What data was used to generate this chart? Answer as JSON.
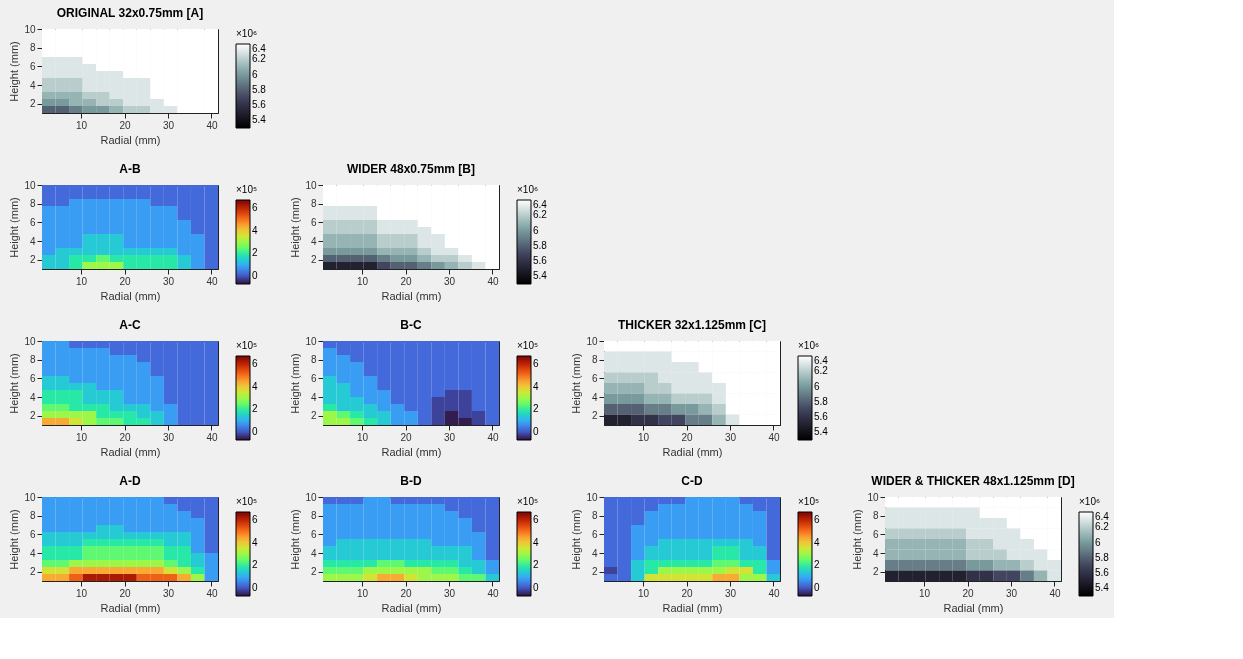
{
  "chart_data": [
    {
      "type": "heatmap",
      "colors": [
        "#000000",
        "#3c3c58",
        "#7fa3a3",
        "#ffffff"
      ],
      "title": "ORIGINAL 32x0.75mm [A]",
      "xlabel": "Radial (mm)",
      "ylabel": "Height (mm)",
      "clabel": "×10⁶",
      "xlim": [
        1,
        41.5
      ],
      "xticks": [
        10,
        20,
        30,
        40
      ],
      "ylim": [
        1,
        10
      ],
      "yticks": [
        2,
        4,
        6,
        8,
        10
      ],
      "clim": [
        5.3,
        6.4
      ],
      "cticks": [
        5.4,
        5.6,
        5.8,
        6,
        6.2,
        6.4
      ],
      "x": [
        2.56,
        5.67,
        8.79,
        11.9,
        15.02,
        18.13,
        21.25,
        24.37,
        27.48,
        30.6,
        33.71,
        36.83,
        39.94
      ],
      "y": [
        9.625,
        8.875,
        8.125,
        7.375,
        6.625,
        5.875,
        5.125,
        4.375,
        3.625,
        2.875,
        2.125,
        1.375
      ],
      "cells": [
        [
          6.4,
          6.4,
          6.4,
          6.4,
          6.4,
          6.4,
          6.4,
          6.4,
          6.4,
          6.4,
          6.4,
          6.4,
          6.4
        ],
        [
          6.4,
          6.4,
          6.4,
          6.4,
          6.4,
          6.4,
          6.4,
          6.4,
          6.4,
          6.4,
          6.4,
          6.4,
          6.4
        ],
        [
          6.4,
          6.4,
          6.4,
          6.4,
          6.4,
          6.4,
          6.4,
          6.4,
          6.4,
          6.4,
          6.4,
          6.4,
          6.4
        ],
        [
          6.4,
          6.4,
          6.4,
          6.4,
          6.4,
          6.4,
          6.4,
          6.4,
          6.4,
          6.4,
          6.4,
          6.4,
          6.4
        ],
        [
          6.3,
          6.3,
          6.3,
          6.4,
          6.4,
          6.4,
          6.4,
          6.4,
          6.4,
          6.4,
          6.4,
          6.4,
          6.4
        ],
        [
          6.3,
          6.3,
          6.3,
          6.3,
          6.4,
          6.4,
          6.4,
          6.4,
          6.4,
          6.4,
          6.4,
          6.4,
          6.4
        ],
        [
          6.3,
          6.3,
          6.3,
          6.3,
          6.3,
          6.3,
          6.4,
          6.4,
          6.4,
          6.4,
          6.4,
          6.4,
          6.4
        ],
        [
          6.2,
          6.2,
          6.2,
          6.3,
          6.3,
          6.3,
          6.3,
          6.3,
          6.4,
          6.4,
          6.4,
          6.4,
          6.4
        ],
        [
          6.2,
          6.2,
          6.2,
          6.3,
          6.3,
          6.3,
          6.3,
          6.3,
          6.4,
          6.4,
          6.4,
          6.4,
          6.4
        ],
        [
          6.1,
          6.1,
          6.1,
          6.2,
          6.2,
          6.3,
          6.3,
          6.3,
          6.4,
          6.4,
          6.4,
          6.4,
          6.4
        ],
        [
          6.0,
          6.0,
          6.1,
          6.1,
          6.2,
          6.2,
          6.3,
          6.3,
          6.3,
          6.4,
          6.4,
          6.4,
          6.4
        ],
        [
          5.8,
          5.8,
          5.9,
          6.0,
          6.0,
          6.1,
          6.2,
          6.2,
          6.3,
          6.3,
          6.4,
          6.4,
          6.4
        ]
      ]
    },
    {
      "type": "heatmap",
      "colors": [
        "#30123b",
        "#4662d7",
        "#36aaf9",
        "#1ae4b6",
        "#72fe5e",
        "#c8ef34",
        "#faba39",
        "#f66b19",
        "#ca2a04",
        "#7a0403"
      ],
      "title": "A-B",
      "xlabel": "Radial (mm)",
      "ylabel": "Height (mm)",
      "clabel": "×10⁵",
      "xlim": [
        1,
        41.5
      ],
      "xticks": [
        10,
        20,
        30,
        40
      ],
      "ylim": [
        1,
        10
      ],
      "yticks": [
        2,
        4,
        6,
        8,
        10
      ],
      "clim": [
        -0.7,
        6.7
      ],
      "cticks": [
        0,
        2,
        4,
        6
      ],
      "x": [
        2.56,
        5.67,
        8.79,
        11.9,
        15.02,
        18.13,
        21.25,
        24.37,
        27.48,
        30.6,
        33.71,
        36.83,
        39.94
      ],
      "y": [
        9.625,
        8.875,
        8.125,
        7.375,
        6.625,
        5.875,
        5.125,
        4.375,
        3.625,
        2.875,
        2.125,
        1.375
      ],
      "cells": [
        [
          0.2,
          0.2,
          0.2,
          0.2,
          0.2,
          0.2,
          0.2,
          0.2,
          0.2,
          0.2,
          0.2,
          0.2,
          0.2
        ],
        [
          0.2,
          0.2,
          0.2,
          0.2,
          0.2,
          0.2,
          0.2,
          0.2,
          0.2,
          0.2,
          0.2,
          0.2,
          0.2
        ],
        [
          0.2,
          0.2,
          0.8,
          0.8,
          0.8,
          0.8,
          0.8,
          0.8,
          0.2,
          0.2,
          0.2,
          0.2,
          0.2
        ],
        [
          0.8,
          0.8,
          0.8,
          0.8,
          0.8,
          0.8,
          0.8,
          0.8,
          0.8,
          0.8,
          0.2,
          0.2,
          0.2
        ],
        [
          0.8,
          0.8,
          0.8,
          0.8,
          0.8,
          0.8,
          0.8,
          0.8,
          0.8,
          0.8,
          0.2,
          0.2,
          0.2
        ],
        [
          0.8,
          0.8,
          0.8,
          0.8,
          0.8,
          0.8,
          0.8,
          0.8,
          0.8,
          0.8,
          0.8,
          0.2,
          0.2
        ],
        [
          0.8,
          0.8,
          0.8,
          0.8,
          0.8,
          0.8,
          0.8,
          0.8,
          0.8,
          0.8,
          0.8,
          0.2,
          0.2
        ],
        [
          0.8,
          0.8,
          0.8,
          1.4,
          1.4,
          1.4,
          0.8,
          0.8,
          0.8,
          0.8,
          0.8,
          0.8,
          0.2
        ],
        [
          0.8,
          0.8,
          0.8,
          1.4,
          1.4,
          1.4,
          0.8,
          0.8,
          0.8,
          0.8,
          0.8,
          0.8,
          0.2
        ],
        [
          0.8,
          1.4,
          1.4,
          1.4,
          1.4,
          1.4,
          1.4,
          1.4,
          1.4,
          1.4,
          0.8,
          0.8,
          0.2
        ],
        [
          1.4,
          1.4,
          1.9,
          1.9,
          2.4,
          1.9,
          1.9,
          1.9,
          1.9,
          1.9,
          1.4,
          0.8,
          0.2
        ],
        [
          1.4,
          1.4,
          1.9,
          3,
          3,
          3,
          1.9,
          1.9,
          1.9,
          1.9,
          1.4,
          0.8,
          0.2
        ]
      ]
    },
    {
      "type": "heatmap",
      "colors": [
        "#000000",
        "#3c3c58",
        "#7fa3a3",
        "#ffffff"
      ],
      "title": "WIDER 48x0.75mm [B]",
      "xlabel": "Radial (mm)",
      "ylabel": "Height (mm)",
      "clabel": "×10⁶",
      "xlim": [
        1,
        41.5
      ],
      "xticks": [
        10,
        20,
        30,
        40
      ],
      "ylim": [
        1,
        10
      ],
      "yticks": [
        2,
        4,
        6,
        8,
        10
      ],
      "clim": [
        5.3,
        6.4
      ],
      "cticks": [
        5.4,
        5.6,
        5.8,
        6,
        6.2,
        6.4
      ],
      "x": [
        2.56,
        5.67,
        8.79,
        11.9,
        15.02,
        18.13,
        21.25,
        24.37,
        27.48,
        30.6,
        33.71,
        36.83,
        39.94
      ],
      "y": [
        9.625,
        8.875,
        8.125,
        7.375,
        6.625,
        5.875,
        5.125,
        4.375,
        3.625,
        2.875,
        2.125,
        1.375
      ],
      "cells": [
        [
          6.4,
          6.4,
          6.4,
          6.4,
          6.4,
          6.4,
          6.4,
          6.4,
          6.4,
          6.4,
          6.4,
          6.4,
          6.4
        ],
        [
          6.4,
          6.4,
          6.4,
          6.4,
          6.4,
          6.4,
          6.4,
          6.4,
          6.4,
          6.4,
          6.4,
          6.4,
          6.4
        ],
        [
          6.4,
          6.4,
          6.4,
          6.4,
          6.4,
          6.4,
          6.4,
          6.4,
          6.4,
          6.4,
          6.4,
          6.4,
          6.4
        ],
        [
          6.3,
          6.3,
          6.3,
          6.3,
          6.4,
          6.4,
          6.4,
          6.4,
          6.4,
          6.4,
          6.4,
          6.4,
          6.4
        ],
        [
          6.3,
          6.3,
          6.3,
          6.3,
          6.4,
          6.4,
          6.4,
          6.4,
          6.4,
          6.4,
          6.4,
          6.4,
          6.4
        ],
        [
          6.2,
          6.2,
          6.2,
          6.2,
          6.3,
          6.3,
          6.3,
          6.4,
          6.4,
          6.4,
          6.4,
          6.4,
          6.4
        ],
        [
          6.2,
          6.2,
          6.2,
          6.2,
          6.3,
          6.3,
          6.3,
          6.3,
          6.4,
          6.4,
          6.4,
          6.4,
          6.4
        ],
        [
          6.1,
          6.1,
          6.1,
          6.1,
          6.2,
          6.2,
          6.2,
          6.3,
          6.3,
          6.4,
          6.4,
          6.4,
          6.4
        ],
        [
          6.1,
          6.1,
          6.1,
          6.1,
          6.2,
          6.2,
          6.2,
          6.3,
          6.3,
          6.4,
          6.4,
          6.4,
          6.4
        ],
        [
          6.0,
          6.0,
          6.0,
          6.0,
          6.1,
          6.1,
          6.1,
          6.2,
          6.3,
          6.3,
          6.4,
          6.4,
          6.4
        ],
        [
          5.8,
          5.8,
          5.8,
          5.8,
          5.9,
          6.0,
          6.0,
          6.1,
          6.2,
          6.2,
          6.3,
          6.4,
          6.4
        ],
        [
          5.5,
          5.5,
          5.5,
          5.5,
          5.7,
          5.8,
          5.8,
          5.9,
          6.0,
          6.1,
          6.2,
          6.3,
          6.4
        ]
      ]
    },
    {
      "type": "heatmap",
      "colors": [
        "#30123b",
        "#4662d7",
        "#36aaf9",
        "#1ae4b6",
        "#72fe5e",
        "#c8ef34",
        "#faba39",
        "#f66b19",
        "#ca2a04",
        "#7a0403"
      ],
      "title": "A-C",
      "xlabel": "Radial (mm)",
      "ylabel": "Height (mm)",
      "clabel": "×10⁵",
      "xlim": [
        1,
        41.5
      ],
      "xticks": [
        10,
        20,
        30,
        40
      ],
      "ylim": [
        1,
        10
      ],
      "yticks": [
        2,
        4,
        6,
        8,
        10
      ],
      "clim": [
        -0.7,
        6.7
      ],
      "cticks": [
        0,
        2,
        4,
        6
      ],
      "x": [
        2.56,
        5.67,
        8.79,
        11.9,
        15.02,
        18.13,
        21.25,
        24.37,
        27.48,
        30.6,
        33.71,
        36.83,
        39.94
      ],
      "y": [
        9.625,
        8.875,
        8.125,
        7.375,
        6.625,
        5.875,
        5.125,
        4.375,
        3.625,
        2.875,
        2.125,
        1.375
      ],
      "cells": [
        [
          0.8,
          0.8,
          0.2,
          0.2,
          0.2,
          0.2,
          0.2,
          0.2,
          0.2,
          0.2,
          0.2,
          0.2,
          0.2
        ],
        [
          0.8,
          0.8,
          0.8,
          0.8,
          0.8,
          0.2,
          0.2,
          0.2,
          0.2,
          0.2,
          0.2,
          0.2,
          0.2
        ],
        [
          0.8,
          0.8,
          0.8,
          0.8,
          0.8,
          0.8,
          0.8,
          0.2,
          0.2,
          0.2,
          0.2,
          0.2,
          0.2
        ],
        [
          0.8,
          0.8,
          0.8,
          0.8,
          0.8,
          0.8,
          0.8,
          0.8,
          0.2,
          0.2,
          0.2,
          0.2,
          0.2
        ],
        [
          0.8,
          0.8,
          0.8,
          0.8,
          0.8,
          0.8,
          0.8,
          0.8,
          0.2,
          0.2,
          0.2,
          0.2,
          0.2
        ],
        [
          1.4,
          1.4,
          0.8,
          0.8,
          0.8,
          0.8,
          0.8,
          0.8,
          0.8,
          0.2,
          0.2,
          0.2,
          0.2
        ],
        [
          1.4,
          1.4,
          1.4,
          1.4,
          0.8,
          0.8,
          0.8,
          0.8,
          0.8,
          0.2,
          0.2,
          0.2,
          0.2
        ],
        [
          1.9,
          1.9,
          1.9,
          1.4,
          1.4,
          1.4,
          0.8,
          0.8,
          0.8,
          0.2,
          0.2,
          0.2,
          0.2
        ],
        [
          1.9,
          1.9,
          1.9,
          1.4,
          1.4,
          1.4,
          0.8,
          0.8,
          0.8,
          0.2,
          0.2,
          0.2,
          0.2
        ],
        [
          2.4,
          2.4,
          1.9,
          1.9,
          1.9,
          1.4,
          1.4,
          1.4,
          0.8,
          0.8,
          0.2,
          0.2,
          0.2
        ],
        [
          3,
          3,
          3,
          3,
          1.9,
          1.9,
          1.9,
          1.4,
          1.4,
          0.8,
          0.2,
          0.2,
          0.2
        ],
        [
          4.4,
          4.4,
          3.6,
          3,
          2.4,
          2.4,
          1.9,
          1.9,
          1.4,
          0.8,
          0.2,
          0.2,
          0.2
        ]
      ]
    },
    {
      "type": "heatmap",
      "colors": [
        "#30123b",
        "#4662d7",
        "#36aaf9",
        "#1ae4b6",
        "#72fe5e",
        "#c8ef34",
        "#faba39",
        "#f66b19",
        "#ca2a04",
        "#7a0403"
      ],
      "title": "B-C",
      "xlabel": "Radial (mm)",
      "ylabel": "Height (mm)",
      "clabel": "×10⁵",
      "xlim": [
        1,
        41.5
      ],
      "xticks": [
        10,
        20,
        30,
        40
      ],
      "ylim": [
        1,
        10
      ],
      "yticks": [
        2,
        4,
        6,
        8,
        10
      ],
      "clim": [
        -0.7,
        6.7
      ],
      "cticks": [
        0,
        2,
        4,
        6
      ],
      "x": [
        2.56,
        5.67,
        8.79,
        11.9,
        15.02,
        18.13,
        21.25,
        24.37,
        27.48,
        30.6,
        33.71,
        36.83,
        39.94
      ],
      "y": [
        9.625,
        8.875,
        8.125,
        7.375,
        6.625,
        5.875,
        5.125,
        4.375,
        3.625,
        2.875,
        2.125,
        1.375
      ],
      "cells": [
        [
          0.2,
          0.2,
          0.2,
          0.2,
          0.2,
          0.2,
          0.2,
          0.2,
          0.2,
          0.2,
          0.2,
          0.2,
          0.2
        ],
        [
          0.8,
          0.2,
          0.2,
          0.2,
          0.2,
          0.2,
          0.2,
          0.2,
          0.2,
          0.2,
          0.2,
          0.2,
          0.2
        ],
        [
          0.8,
          0.8,
          0.2,
          0.2,
          0.2,
          0.2,
          0.2,
          0.2,
          0.2,
          0.2,
          0.2,
          0.2,
          0.2
        ],
        [
          0.8,
          0.8,
          0.8,
          0.2,
          0.2,
          0.2,
          0.2,
          0.2,
          0.2,
          0.2,
          0.2,
          0.2,
          0.2
        ],
        [
          0.8,
          0.8,
          0.8,
          0.2,
          0.2,
          0.2,
          0.2,
          0.2,
          0.2,
          0.2,
          0.2,
          0.2,
          0.2
        ],
        [
          1.4,
          0.8,
          0.8,
          0.8,
          0.2,
          0.2,
          0.2,
          0.2,
          0.2,
          0.2,
          0.2,
          0.2,
          0.2
        ],
        [
          1.4,
          1.4,
          0.8,
          0.8,
          0.2,
          0.2,
          0.2,
          0.2,
          0.2,
          0.2,
          0.2,
          0.2,
          0.2
        ],
        [
          1.4,
          1.4,
          0.8,
          0.8,
          0.8,
          0.2,
          0.2,
          0.2,
          0.2,
          -0.2,
          -0.2,
          0.2,
          0.2
        ],
        [
          1.4,
          1.4,
          1.4,
          0.8,
          0.8,
          0.2,
          0.2,
          0.2,
          -0.2,
          -0.2,
          -0.2,
          0.2,
          0.2
        ],
        [
          1.9,
          1.4,
          1.4,
          1.4,
          0.8,
          0.8,
          0.2,
          0.2,
          -0.2,
          -0.2,
          -0.2,
          0.2,
          0.2
        ],
        [
          3,
          2.4,
          1.9,
          1.4,
          1.4,
          0.8,
          0.8,
          0.2,
          -0.2,
          -0.6,
          -0.2,
          -0.2,
          0.2
        ],
        [
          3,
          3,
          2.4,
          1.9,
          1.4,
          0.8,
          0.8,
          0.2,
          -0.2,
          -0.6,
          -0.6,
          -0.2,
          0.2
        ]
      ]
    },
    {
      "type": "heatmap",
      "colors": [
        "#000000",
        "#3c3c58",
        "#7fa3a3",
        "#ffffff"
      ],
      "title": "THICKER 32x1.125mm [C]",
      "xlabel": "Radial (mm)",
      "ylabel": "Height (mm)",
      "clabel": "×10⁶",
      "xlim": [
        1,
        41.5
      ],
      "xticks": [
        10,
        20,
        30,
        40
      ],
      "ylim": [
        1,
        10
      ],
      "yticks": [
        2,
        4,
        6,
        8,
        10
      ],
      "clim": [
        5.3,
        6.4
      ],
      "cticks": [
        5.4,
        5.6,
        5.8,
        6,
        6.2,
        6.4
      ],
      "x": [
        2.56,
        5.67,
        8.79,
        11.9,
        15.02,
        18.13,
        21.25,
        24.37,
        27.48,
        30.6,
        33.71,
        36.83,
        39.94
      ],
      "y": [
        9.4375,
        8.3125,
        7.1875,
        6.0625,
        4.9375,
        3.8125,
        2.6875,
        1.5625
      ],
      "cells": [
        [
          6.4,
          6.4,
          6.4,
          6.4,
          6.4,
          6.4,
          6.4,
          6.4,
          6.4,
          6.4,
          6.4,
          6.4,
          6.4
        ],
        [
          6.3,
          6.3,
          6.3,
          6.3,
          6.3,
          6.4,
          6.4,
          6.4,
          6.4,
          6.4,
          6.4,
          6.4,
          6.4
        ],
        [
          6.3,
          6.3,
          6.3,
          6.3,
          6.3,
          6.3,
          6.3,
          6.4,
          6.4,
          6.4,
          6.4,
          6.4,
          6.4
        ],
        [
          6.2,
          6.2,
          6.2,
          6.2,
          6.3,
          6.3,
          6.3,
          6.3,
          6.4,
          6.4,
          6.4,
          6.4,
          6.4
        ],
        [
          6.1,
          6.1,
          6.1,
          6.2,
          6.2,
          6.3,
          6.3,
          6.3,
          6.3,
          6.4,
          6.4,
          6.4,
          6.4
        ],
        [
          6.0,
          6.0,
          6.0,
          6.1,
          6.1,
          6.2,
          6.2,
          6.2,
          6.3,
          6.4,
          6.4,
          6.4,
          6.4
        ],
        [
          5.8,
          5.8,
          5.8,
          5.9,
          5.9,
          6.0,
          6.0,
          6.1,
          6.2,
          6.4,
          6.4,
          6.4,
          6.4
        ],
        [
          5.5,
          5.5,
          5.6,
          5.6,
          5.7,
          5.7,
          5.9,
          5.9,
          6.1,
          6.3,
          6.4,
          6.4,
          6.4
        ]
      ]
    },
    {
      "type": "heatmap",
      "colors": [
        "#30123b",
        "#4662d7",
        "#36aaf9",
        "#1ae4b6",
        "#72fe5e",
        "#c8ef34",
        "#faba39",
        "#f66b19",
        "#ca2a04",
        "#7a0403"
      ],
      "title": "A-D",
      "xlabel": "Radial (mm)",
      "ylabel": "Height (mm)",
      "clabel": "×10⁵",
      "xlim": [
        1,
        41.5
      ],
      "xticks": [
        10,
        20,
        30,
        40
      ],
      "ylim": [
        1,
        10
      ],
      "yticks": [
        2,
        4,
        6,
        8,
        10
      ],
      "clim": [
        -0.7,
        6.7
      ],
      "cticks": [
        0,
        2,
        4,
        6
      ],
      "x": [
        2.56,
        5.67,
        8.79,
        11.9,
        15.02,
        18.13,
        21.25,
        24.37,
        27.48,
        30.6,
        33.71,
        36.83,
        39.94
      ],
      "y": [
        9.625,
        8.875,
        8.125,
        7.375,
        6.625,
        5.875,
        5.125,
        4.375,
        3.625,
        2.875,
        2.125,
        1.375
      ],
      "cells": [
        [
          0.8,
          0.8,
          0.8,
          0.8,
          0.8,
          0.8,
          0.8,
          0.8,
          0.8,
          0.2,
          0.2,
          0.2,
          0.2
        ],
        [
          0.8,
          0.8,
          0.8,
          0.8,
          0.8,
          0.8,
          0.8,
          0.8,
          0.8,
          0.8,
          0.2,
          0.2,
          0.2
        ],
        [
          0.8,
          0.8,
          0.8,
          0.8,
          0.8,
          0.8,
          0.8,
          0.8,
          0.8,
          0.8,
          0.8,
          0.2,
          0.2
        ],
        [
          0.8,
          0.8,
          0.8,
          0.8,
          0.8,
          0.8,
          0.8,
          0.8,
          0.8,
          0.8,
          0.8,
          0.8,
          0.2
        ],
        [
          0.8,
          0.8,
          0.8,
          0.8,
          1.4,
          1.4,
          0.8,
          0.8,
          0.8,
          0.8,
          0.8,
          0.8,
          0.2
        ],
        [
          1.4,
          1.4,
          1.4,
          1.4,
          1.4,
          1.4,
          1.4,
          1.4,
          1.4,
          1.4,
          1.4,
          0.8,
          0.2
        ],
        [
          1.4,
          1.4,
          1.4,
          1.9,
          1.9,
          1.9,
          1.9,
          1.9,
          1.9,
          1.4,
          1.4,
          0.8,
          0.2
        ],
        [
          1.9,
          1.9,
          1.9,
          2.4,
          2.4,
          2.4,
          2.4,
          2.4,
          2.4,
          1.9,
          1.9,
          0.8,
          0.2
        ],
        [
          1.9,
          1.9,
          1.9,
          2.4,
          2.4,
          2.4,
          2.4,
          2.4,
          2.4,
          1.9,
          1.9,
          1.4,
          0.8
        ],
        [
          2.4,
          2.4,
          3,
          3,
          3,
          3,
          3,
          3,
          3,
          2.4,
          1.9,
          1.4,
          0.8
        ],
        [
          3.6,
          3.6,
          4.4,
          4.4,
          4.4,
          4.4,
          4.4,
          4.4,
          4.4,
          3.6,
          3,
          1.9,
          0.8
        ],
        [
          4.4,
          4.4,
          5.2,
          6.2,
          6.2,
          6.2,
          6.2,
          5.2,
          5.2,
          5.2,
          4.4,
          3,
          0.8
        ]
      ]
    },
    {
      "type": "heatmap",
      "colors": [
        "#30123b",
        "#4662d7",
        "#36aaf9",
        "#1ae4b6",
        "#72fe5e",
        "#c8ef34",
        "#faba39",
        "#f66b19",
        "#ca2a04",
        "#7a0403"
      ],
      "title": "B-D",
      "xlabel": "Radial (mm)",
      "ylabel": "Height (mm)",
      "clabel": "×10⁵",
      "xlim": [
        1,
        41.5
      ],
      "xticks": [
        10,
        20,
        30,
        40
      ],
      "ylim": [
        1,
        10
      ],
      "yticks": [
        2,
        4,
        6,
        8,
        10
      ],
      "clim": [
        -0.7,
        6.7
      ],
      "cticks": [
        0,
        2,
        4,
        6
      ],
      "x": [
        2.56,
        5.67,
        8.79,
        11.9,
        15.02,
        18.13,
        21.25,
        24.37,
        27.48,
        30.6,
        33.71,
        36.83,
        39.94
      ],
      "y": [
        9.625,
        8.875,
        8.125,
        7.375,
        6.625,
        5.875,
        5.125,
        4.375,
        3.625,
        2.875,
        2.125,
        1.375
      ],
      "cells": [
        [
          0.2,
          0.2,
          0.2,
          0.8,
          0.8,
          0.2,
          0.2,
          0.2,
          0.2,
          0.2,
          0.2,
          0.2,
          0.2
        ],
        [
          0.8,
          0.8,
          0.8,
          0.8,
          0.8,
          0.8,
          0.8,
          0.8,
          0.8,
          0.2,
          0.2,
          0.2,
          0.2
        ],
        [
          0.8,
          0.8,
          0.8,
          0.8,
          0.8,
          0.8,
          0.8,
          0.8,
          0.8,
          0.8,
          0.2,
          0.2,
          0.2
        ],
        [
          0.8,
          0.8,
          0.8,
          0.8,
          0.8,
          0.8,
          0.8,
          0.8,
          0.8,
          0.8,
          0.8,
          0.2,
          0.2
        ],
        [
          0.8,
          0.8,
          0.8,
          0.8,
          0.8,
          0.8,
          0.8,
          0.8,
          0.8,
          0.8,
          0.8,
          0.2,
          0.2
        ],
        [
          0.8,
          0.8,
          0.8,
          0.8,
          0.8,
          0.8,
          0.8,
          0.8,
          0.8,
          0.8,
          0.8,
          0.8,
          0.2
        ],
        [
          0.8,
          1.4,
          1.4,
          1.4,
          1.4,
          1.4,
          1.4,
          1.4,
          0.8,
          0.8,
          0.8,
          0.8,
          0.2
        ],
        [
          1.4,
          1.4,
          1.4,
          1.4,
          1.4,
          1.4,
          1.4,
          1.4,
          1.4,
          1.4,
          1.4,
          0.8,
          0.2
        ],
        [
          1.4,
          1.4,
          1.4,
          1.4,
          1.4,
          1.4,
          1.4,
          1.4,
          1.4,
          1.4,
          1.4,
          0.8,
          0.2
        ],
        [
          1.9,
          1.9,
          1.9,
          1.9,
          2.4,
          2.4,
          1.9,
          1.9,
          1.9,
          1.9,
          1.4,
          1.4,
          0.8
        ],
        [
          2.4,
          2.4,
          2.4,
          3,
          3,
          3,
          3,
          3,
          2.4,
          2.4,
          1.9,
          1.4,
          0.8
        ],
        [
          3,
          3,
          3,
          3.6,
          4.4,
          4.4,
          3.6,
          3,
          3,
          3,
          2.4,
          2.4,
          1.4
        ]
      ]
    },
    {
      "type": "heatmap",
      "colors": [
        "#30123b",
        "#4662d7",
        "#36aaf9",
        "#1ae4b6",
        "#72fe5e",
        "#c8ef34",
        "#faba39",
        "#f66b19",
        "#ca2a04",
        "#7a0403"
      ],
      "title": "C-D",
      "xlabel": "Radial (mm)",
      "ylabel": "Height (mm)",
      "clabel": "×10⁵",
      "xlim": [
        1,
        41.5
      ],
      "xticks": [
        10,
        20,
        30,
        40
      ],
      "ylim": [
        1,
        10
      ],
      "yticks": [
        2,
        4,
        6,
        8,
        10
      ],
      "clim": [
        -0.7,
        6.7
      ],
      "cticks": [
        0,
        2,
        4,
        6
      ],
      "x": [
        2.56,
        5.67,
        8.79,
        11.9,
        15.02,
        18.13,
        21.25,
        24.37,
        27.48,
        30.6,
        33.71,
        36.83,
        39.94
      ],
      "y": [
        9.625,
        8.875,
        8.125,
        7.375,
        6.625,
        5.875,
        5.125,
        4.375,
        3.625,
        2.875,
        2.125,
        1.375
      ],
      "cells": [
        [
          0.2,
          0.2,
          0.2,
          0.2,
          0.2,
          0.2,
          0.8,
          0.8,
          0.8,
          0.8,
          0.2,
          0.2,
          0.2
        ],
        [
          0.2,
          0.2,
          0.2,
          0.2,
          0.8,
          0.8,
          0.8,
          0.8,
          0.8,
          0.8,
          0.8,
          0.2,
          0.2
        ],
        [
          0.2,
          0.2,
          0.2,
          0.8,
          0.8,
          0.8,
          0.8,
          0.8,
          0.8,
          0.8,
          0.8,
          0.8,
          0.2
        ],
        [
          0.2,
          0.2,
          0.2,
          0.8,
          0.8,
          0.8,
          0.8,
          0.8,
          0.8,
          0.8,
          0.8,
          0.8,
          0.2
        ],
        [
          0.2,
          0.2,
          0.8,
          0.8,
          0.8,
          0.8,
          0.8,
          0.8,
          0.8,
          0.8,
          0.8,
          0.8,
          0.2
        ],
        [
          0.2,
          0.2,
          0.8,
          0.8,
          0.8,
          0.8,
          0.8,
          0.8,
          0.8,
          0.8,
          0.8,
          0.8,
          0.2
        ],
        [
          0.2,
          0.2,
          0.8,
          0.8,
          1.4,
          1.4,
          1.4,
          1.4,
          1.4,
          1.4,
          1.4,
          0.8,
          0.2
        ],
        [
          0.2,
          0.2,
          0.8,
          1.4,
          1.4,
          1.4,
          1.4,
          1.4,
          1.9,
          1.9,
          1.4,
          1.4,
          0.2
        ],
        [
          0.2,
          0.2,
          0.8,
          1.4,
          1.4,
          1.4,
          1.4,
          1.4,
          1.9,
          1.9,
          1.4,
          1.4,
          0.2
        ],
        [
          0.2,
          0.2,
          1.4,
          1.9,
          1.9,
          1.9,
          1.9,
          1.9,
          2.4,
          2.4,
          1.9,
          1.9,
          0.8
        ],
        [
          -0.2,
          0.2,
          1.4,
          1.9,
          3,
          3,
          3,
          3,
          3,
          3.6,
          3.6,
          1.9,
          0.8
        ],
        [
          0.2,
          0.2,
          1.4,
          3.6,
          3.6,
          3.6,
          3.6,
          3.6,
          4.4,
          4.4,
          3,
          3,
          1.4
        ]
      ]
    },
    {
      "type": "heatmap",
      "colors": [
        "#000000",
        "#3c3c58",
        "#7fa3a3",
        "#ffffff"
      ],
      "title": "WIDER & THICKER 48x1.125mm [D]",
      "xlabel": "Radial (mm)",
      "ylabel": "Height (mm)",
      "clabel": "×10⁶",
      "xlim": [
        1,
        41.5
      ],
      "xticks": [
        10,
        20,
        30,
        40
      ],
      "ylim": [
        1,
        10
      ],
      "yticks": [
        2,
        4,
        6,
        8,
        10
      ],
      "clim": [
        5.3,
        6.4
      ],
      "cticks": [
        5.4,
        5.6,
        5.8,
        6,
        6.2,
        6.4
      ],
      "x": [
        2.56,
        5.67,
        8.79,
        11.9,
        15.02,
        18.13,
        21.25,
        24.37,
        27.48,
        30.6,
        33.71,
        36.83,
        39.94
      ],
      "y": [
        9.4375,
        8.3125,
        7.1875,
        6.0625,
        4.9375,
        3.8125,
        2.6875,
        1.5625
      ],
      "cells": [
        [
          6.4,
          6.4,
          6.4,
          6.4,
          6.4,
          6.4,
          6.4,
          6.4,
          6.4,
          6.4,
          6.4,
          6.4,
          6.4
        ],
        [
          6.3,
          6.3,
          6.3,
          6.3,
          6.3,
          6.3,
          6.3,
          6.4,
          6.4,
          6.4,
          6.4,
          6.4,
          6.4
        ],
        [
          6.3,
          6.3,
          6.3,
          6.3,
          6.3,
          6.3,
          6.3,
          6.3,
          6.3,
          6.4,
          6.4,
          6.4,
          6.4
        ],
        [
          6.2,
          6.2,
          6.2,
          6.2,
          6.2,
          6.2,
          6.3,
          6.3,
          6.3,
          6.3,
          6.4,
          6.4,
          6.4
        ],
        [
          6.1,
          6.1,
          6.1,
          6.1,
          6.1,
          6.1,
          6.2,
          6.2,
          6.3,
          6.3,
          6.3,
          6.4,
          6.4
        ],
        [
          6.1,
          6.1,
          6.1,
          6.1,
          6.1,
          6.1,
          6.2,
          6.2,
          6.2,
          6.3,
          6.3,
          6.3,
          6.4
        ],
        [
          5.9,
          5.9,
          5.9,
          5.9,
          5.9,
          5.9,
          6.0,
          6.0,
          6.1,
          6.1,
          6.2,
          6.3,
          6.3
        ],
        [
          5.5,
          5.5,
          5.5,
          5.5,
          5.5,
          5.5,
          5.6,
          5.6,
          5.7,
          5.7,
          5.9,
          6.1,
          6.3
        ]
      ]
    }
  ]
}
